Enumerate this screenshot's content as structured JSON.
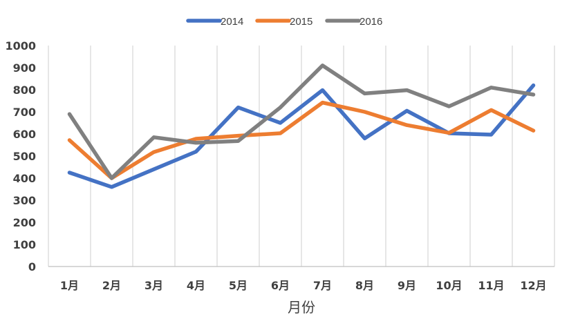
{
  "chart_data": {
    "type": "line",
    "title": "",
    "xlabel": "月份",
    "ylabel": "",
    "categories": [
      "1月",
      "2月",
      "3月",
      "4月",
      "5月",
      "6月",
      "7月",
      "8月",
      "9月",
      "10月",
      "11月",
      "12月"
    ],
    "ylim": [
      0,
      1000
    ],
    "yticks": [
      0,
      100,
      200,
      300,
      400,
      500,
      600,
      700,
      800,
      900,
      1000
    ],
    "grid": "vertical",
    "legend_position": "top-center",
    "series": [
      {
        "name": "2014",
        "color": "#4472C4",
        "values": [
          425,
          360,
          440,
          520,
          720,
          650,
          798,
          580,
          705,
          603,
          597,
          820
        ]
      },
      {
        "name": "2015",
        "color": "#ED7D31",
        "values": [
          572,
          400,
          518,
          578,
          592,
          603,
          742,
          700,
          640,
          605,
          708,
          615
        ]
      },
      {
        "name": "2016",
        "color": "#808080",
        "values": [
          690,
          400,
          585,
          560,
          568,
          720,
          910,
          783,
          798,
          725,
          810,
          778
        ]
      }
    ]
  }
}
